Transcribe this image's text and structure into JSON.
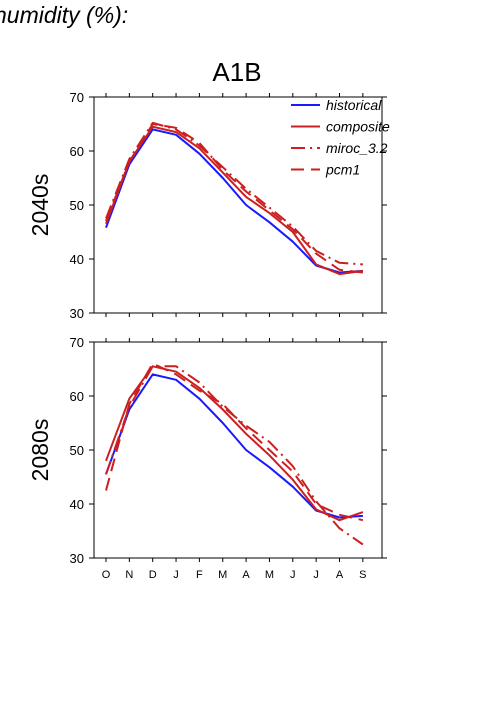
{
  "page": {
    "title": "humidity (%):"
  },
  "colors": {
    "historical": "#1a1aff",
    "scenario": "#cc1f1f",
    "axis": "#000000"
  },
  "chart_data": {
    "type": "line",
    "title": "A1B",
    "categories": [
      "O",
      "N",
      "D",
      "J",
      "F",
      "M",
      "A",
      "M",
      "J",
      "J",
      "A",
      "S"
    ],
    "legend": {
      "placement": "top-right",
      "entries": [
        {
          "name": "historical",
          "style": "solid",
          "color": "#1a1aff"
        },
        {
          "name": "composite",
          "style": "solid",
          "color": "#cc1f1f"
        },
        {
          "name": "miroc_3.2",
          "style": "dashdot",
          "color": "#cc1f1f"
        },
        {
          "name": "pcm1",
          "style": "dashed",
          "color": "#cc1f1f"
        }
      ]
    },
    "panels": [
      {
        "ylabel": "2040s",
        "ylim": [
          30,
          70
        ],
        "yticks": [
          30,
          40,
          50,
          60,
          70
        ],
        "series": [
          {
            "name": "historical",
            "values": [
              45.8,
              57.5,
              64.0,
              63.0,
              59.5,
              55.0,
              50.0,
              46.8,
              43.2,
              38.8,
              37.5,
              37.8
            ]
          },
          {
            "name": "composite",
            "values": [
              46.5,
              58.0,
              64.5,
              63.5,
              60.5,
              56.0,
              51.5,
              48.5,
              45.0,
              39.0,
              37.2,
              37.8
            ]
          },
          {
            "name": "miroc_3.2",
            "values": [
              47.5,
              58.5,
              65.2,
              64.0,
              61.0,
              57.0,
              53.0,
              49.5,
              46.0,
              41.5,
              39.3,
              39.0
            ]
          },
          {
            "name": "pcm1",
            "values": [
              47.0,
              58.0,
              65.0,
              64.3,
              61.5,
              56.5,
              52.5,
              49.0,
              45.5,
              41.0,
              38.0,
              37.5
            ]
          }
        ]
      },
      {
        "ylabel": "2080s",
        "ylim": [
          30,
          70
        ],
        "yticks": [
          30,
          40,
          50,
          60,
          70
        ],
        "series": [
          {
            "name": "historical",
            "values": [
              45.5,
              57.5,
              64.0,
              63.0,
              59.5,
              55.0,
              50.0,
              46.8,
              43.2,
              38.8,
              37.5,
              37.8
            ]
          },
          {
            "name": "composite",
            "values": [
              48.0,
              59.5,
              65.5,
              64.5,
              61.5,
              57.5,
              53.0,
              49.0,
              44.5,
              39.0,
              37.0,
              38.5
            ]
          },
          {
            "name": "miroc_3.2",
            "values": [
              45.5,
              58.0,
              65.5,
              65.5,
              62.5,
              58.0,
              54.5,
              51.5,
              47.0,
              40.5,
              35.5,
              32.5
            ]
          },
          {
            "name": "pcm1",
            "values": [
              42.5,
              58.5,
              66.0,
              64.0,
              61.0,
              58.5,
              54.0,
              50.0,
              46.0,
              40.0,
              38.0,
              37.0
            ]
          }
        ]
      }
    ]
  }
}
